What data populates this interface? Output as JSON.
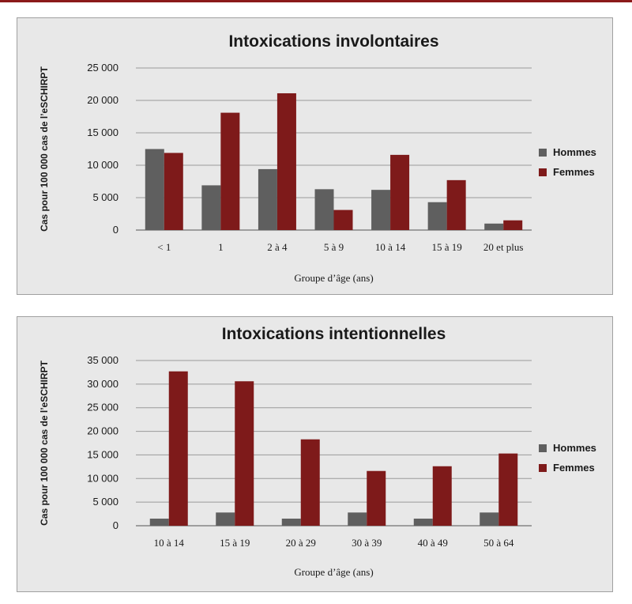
{
  "colors": {
    "hommes": "#5f5f5f",
    "femmes": "#7e1a1a",
    "accent": "#8b1a1a"
  },
  "chart_data": [
    {
      "type": "bar",
      "title": "Intoxications involontaires",
      "xlabel": "Groupe d’âge (ans)",
      "ylabel": "Cas pour 100 000 cas de l’eSCHIRPT",
      "categories": [
        "< 1",
        "1",
        "2 à 4",
        "5 à 9",
        "10 à 14",
        "15 à 19",
        "20 et plus"
      ],
      "series": [
        {
          "name": "Hommes",
          "values": [
            12500,
            6900,
            9400,
            6300,
            6200,
            4300,
            1000
          ]
        },
        {
          "name": "Femmes",
          "values": [
            11900,
            18100,
            21100,
            3100,
            11600,
            7700,
            1500
          ]
        }
      ],
      "ylim": [
        0,
        25000
      ],
      "yticks": [
        0,
        5000,
        10000,
        15000,
        20000,
        25000
      ],
      "ytick_labels": [
        "0",
        "5 000",
        "10 000",
        "15 000",
        "20 000",
        "25 000"
      ],
      "legend": "right",
      "grid": true
    },
    {
      "type": "bar",
      "title": "Intoxications intentionnelles",
      "xlabel": "Groupe d’âge (ans)",
      "ylabel": "Cas pour 100 000 cas de l’eSCHIRPT",
      "categories": [
        "10 à 14",
        "15 à 19",
        "20 à 29",
        "30 à 39",
        "40 à 49",
        "50 à 64"
      ],
      "series": [
        {
          "name": "Hommes",
          "values": [
            1500,
            2800,
            1500,
            2800,
            1500,
            2800
          ]
        },
        {
          "name": "Femmes",
          "values": [
            32700,
            30600,
            18300,
            11600,
            12600,
            15300
          ]
        }
      ],
      "ylim": [
        0,
        35000
      ],
      "yticks": [
        0,
        5000,
        10000,
        15000,
        20000,
        25000,
        30000,
        35000
      ],
      "ytick_labels": [
        "0",
        "5 000",
        "10 000",
        "15 000",
        "20 000",
        "25 000",
        "30 000",
        "35 000"
      ],
      "legend": "right",
      "grid": true
    }
  ]
}
